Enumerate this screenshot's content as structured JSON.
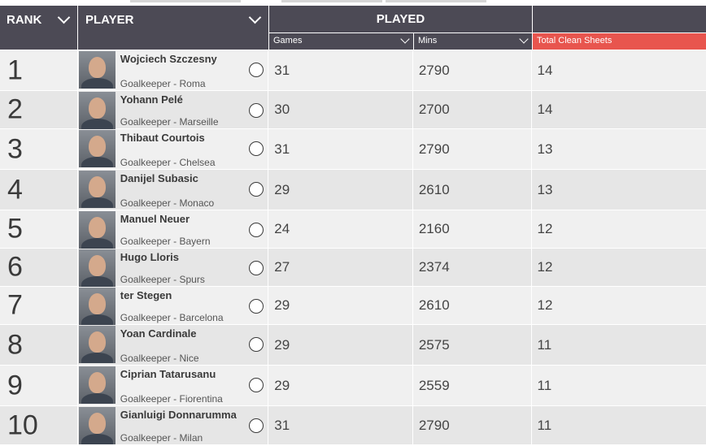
{
  "header": {
    "rank_label": "RANK",
    "player_label": "PLAYER",
    "played_label": "PLAYED",
    "games_label": "Games",
    "mins_label": "Mins",
    "clean_sheets_label": "Total Clean Sheets"
  },
  "colors": {
    "header_bg": "#4c4a55",
    "accent": "#e8554e",
    "row_light": "#f0f0f0",
    "row_dark": "#e6e6e6"
  },
  "rows": [
    {
      "rank": "1",
      "name": "Wojciech Szczesny",
      "team": "Goalkeeper - Roma",
      "games": "31",
      "mins": "2790",
      "clean_sheets": "14"
    },
    {
      "rank": "2",
      "name": "Yohann Pelé",
      "team": "Goalkeeper - Marseille",
      "games": "30",
      "mins": "2700",
      "clean_sheets": "14"
    },
    {
      "rank": "3",
      "name": "Thibaut Courtois",
      "team": "Goalkeeper - Chelsea",
      "games": "31",
      "mins": "2790",
      "clean_sheets": "13"
    },
    {
      "rank": "4",
      "name": "Danijel Subasic",
      "team": "Goalkeeper - Monaco",
      "games": "29",
      "mins": "2610",
      "clean_sheets": "13"
    },
    {
      "rank": "5",
      "name": "Manuel Neuer",
      "team": "Goalkeeper - Bayern",
      "games": "24",
      "mins": "2160",
      "clean_sheets": "12"
    },
    {
      "rank": "6",
      "name": "Hugo Lloris",
      "team": "Goalkeeper - Spurs",
      "games": "27",
      "mins": "2374",
      "clean_sheets": "12"
    },
    {
      "rank": "7",
      "name": "ter Stegen",
      "team": "Goalkeeper - Barcelona",
      "games": "29",
      "mins": "2610",
      "clean_sheets": "12"
    },
    {
      "rank": "8",
      "name": "Yoan Cardinale",
      "team": "Goalkeeper - Nice",
      "games": "29",
      "mins": "2575",
      "clean_sheets": "11"
    },
    {
      "rank": "9",
      "name": "Ciprian Tatarusanu",
      "team": "Goalkeeper - Fiorentina",
      "games": "29",
      "mins": "2559",
      "clean_sheets": "11"
    },
    {
      "rank": "10",
      "name": "Gianluigi Donnarumma",
      "team": "Goalkeeper - Milan",
      "games": "31",
      "mins": "2790",
      "clean_sheets": "11"
    }
  ]
}
